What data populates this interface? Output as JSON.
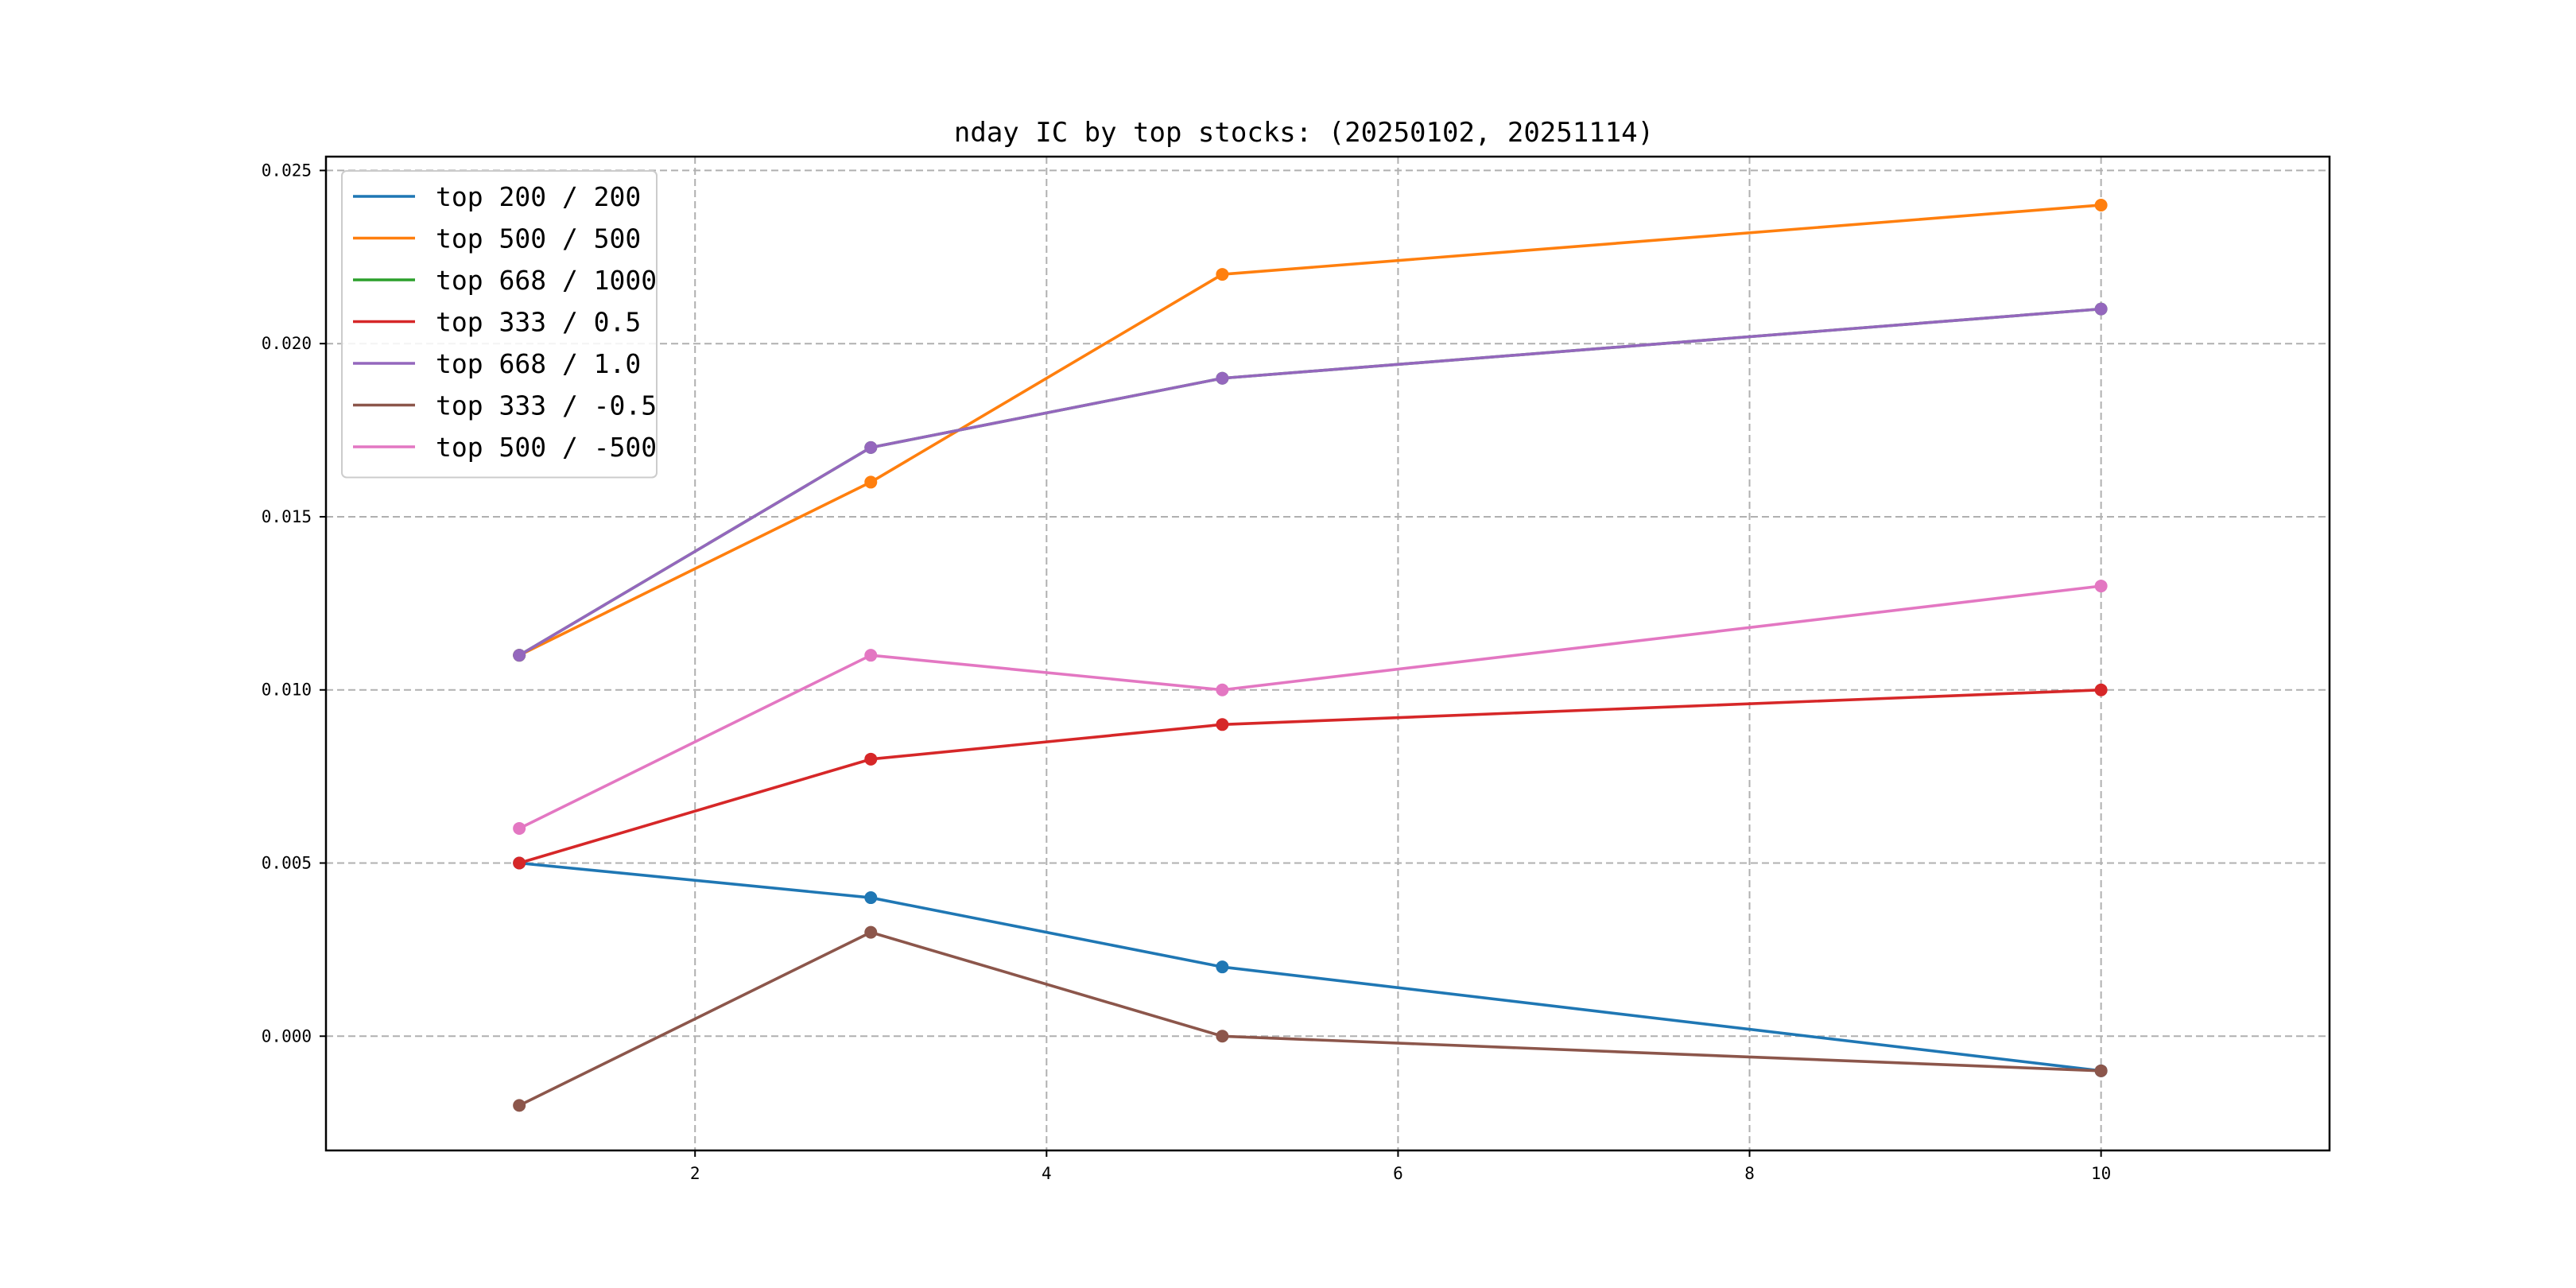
{
  "chart_data": {
    "type": "line",
    "title": "nday IC by top stocks: (20250102, 20251114)",
    "xlabel": "",
    "ylabel": "",
    "x": [
      1,
      3,
      5,
      10
    ],
    "xlim": [
      -0.1,
      11.3
    ],
    "ylim": [
      -0.0033,
      0.0254
    ],
    "xticks": [
      2,
      4,
      6,
      8,
      10
    ],
    "xtick_labels": [
      "2",
      "4",
      "6",
      "8",
      "10"
    ],
    "yticks": [
      0.0,
      0.005,
      0.01,
      0.015,
      0.02,
      0.025
    ],
    "ytick_labels": [
      "0.000",
      "0.005",
      "0.010",
      "0.015",
      "0.020",
      "0.025"
    ],
    "grid": true,
    "legend_position": "top-left",
    "series": [
      {
        "name": "top 200 / 200",
        "color": "#1f77b4",
        "values": [
          0.005,
          0.004,
          0.002,
          -0.001
        ]
      },
      {
        "name": "top 500 / 500",
        "color": "#ff7f0e",
        "values": [
          0.011,
          0.016,
          0.022,
          0.024
        ]
      },
      {
        "name": "top 668 / 1000",
        "color": "#2ca02c",
        "values": [
          0.011,
          0.017,
          0.019,
          0.021
        ]
      },
      {
        "name": "top 333 / 0.5",
        "color": "#d62728",
        "values": [
          0.005,
          0.008,
          0.009,
          0.01
        ]
      },
      {
        "name": "top 668 / 1.0",
        "color": "#9467bd",
        "values": [
          0.011,
          0.017,
          0.019,
          0.021
        ]
      },
      {
        "name": "top 333 / -0.5",
        "color": "#8c564b",
        "values": [
          -0.002,
          0.003,
          0.0,
          -0.001
        ]
      },
      {
        "name": "top 500 / -500",
        "color": "#e377c2",
        "values": [
          0.006,
          0.011,
          0.01,
          0.013
        ]
      }
    ]
  }
}
